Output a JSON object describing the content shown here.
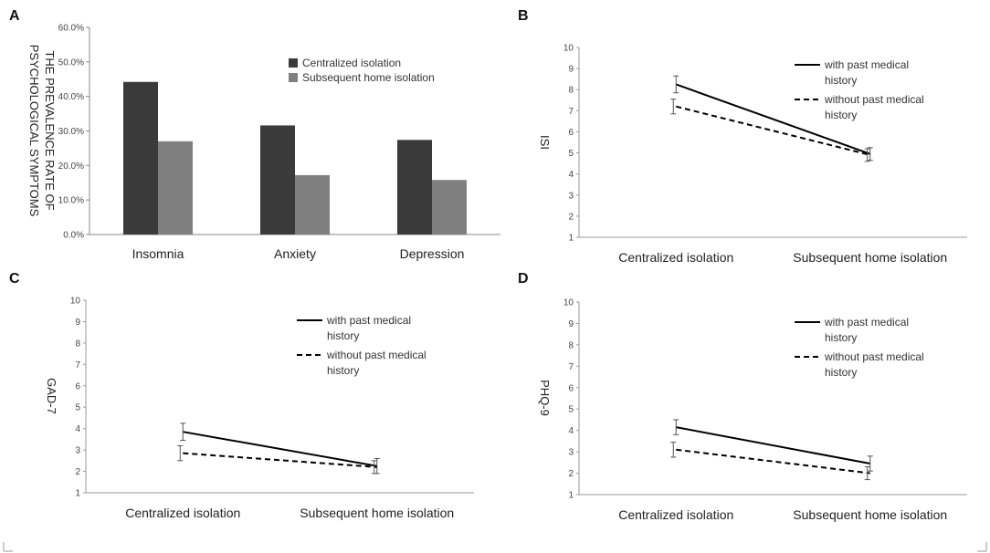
{
  "chart_data": [
    {
      "panel": "A",
      "type": "bar",
      "title": "",
      "ylabel_lines": [
        "THE PREVALENCE RATE OF",
        "PSYCHOLOGICAL SYMPTOMS"
      ],
      "xlabel": "",
      "categories": [
        "Insomnia",
        "Anxiety",
        "Depression"
      ],
      "ylim": [
        0,
        60
      ],
      "yticks": [
        "0.0%",
        "10.0%",
        "20.0%",
        "30.0%",
        "40.0%",
        "50.0%",
        "60.0%"
      ],
      "series": [
        {
          "name": "Centralized isolation",
          "color": "#3a3a3a",
          "values": [
            44.2,
            31.6,
            27.4
          ]
        },
        {
          "name": "Subsequent home isolation",
          "color": "#7f7f7f",
          "values": [
            27.0,
            17.2,
            15.8
          ]
        }
      ],
      "legend": "top-right"
    },
    {
      "panel": "B",
      "type": "line",
      "ylabel": "ISI",
      "categories": [
        "Centralized isolation",
        "Subsequent home isolation"
      ],
      "ylim": [
        1,
        10
      ],
      "yticks": [
        "1",
        "2",
        "3",
        "4",
        "5",
        "6",
        "7",
        "8",
        "9",
        "10"
      ],
      "series": [
        {
          "name_lines": [
            "with past medical",
            "history"
          ],
          "style": "solid",
          "values": [
            8.25,
            4.95
          ],
          "err": [
            0.4,
            0.3
          ]
        },
        {
          "name_lines": [
            "without past medical",
            "history"
          ],
          "style": "dashed",
          "values": [
            7.2,
            4.9
          ],
          "err": [
            0.35,
            0.3
          ]
        }
      ],
      "legend": "top-right"
    },
    {
      "panel": "C",
      "type": "line",
      "ylabel": "GAD-7",
      "categories": [
        "Centralized isolation",
        "Subsequent home isolation"
      ],
      "ylim": [
        1,
        10
      ],
      "yticks": [
        "1",
        "2",
        "3",
        "4",
        "5",
        "6",
        "7",
        "8",
        "9",
        "10"
      ],
      "series": [
        {
          "name_lines": [
            "with past medical",
            "history"
          ],
          "style": "solid",
          "values": [
            3.85,
            2.25
          ],
          "err": [
            0.4,
            0.35
          ]
        },
        {
          "name_lines": [
            "without past medical",
            "history"
          ],
          "style": "dashed",
          "values": [
            2.85,
            2.2
          ],
          "err": [
            0.35,
            0.3
          ]
        }
      ],
      "legend": "top-right"
    },
    {
      "panel": "D",
      "type": "line",
      "ylabel": "PHQ-9",
      "categories": [
        "Centralized isolation",
        "Subsequent home isolation"
      ],
      "ylim": [
        1,
        10
      ],
      "yticks": [
        "1",
        "2",
        "3",
        "4",
        "5",
        "6",
        "7",
        "8",
        "9",
        "10"
      ],
      "series": [
        {
          "name_lines": [
            "with past medical",
            "history"
          ],
          "style": "solid",
          "values": [
            4.15,
            2.45
          ],
          "err": [
            0.35,
            0.35
          ]
        },
        {
          "name_lines": [
            "without past medical",
            "history"
          ],
          "style": "dashed",
          "values": [
            3.1,
            2.0
          ],
          "err": [
            0.35,
            0.3
          ]
        }
      ],
      "legend": "top-right"
    }
  ]
}
